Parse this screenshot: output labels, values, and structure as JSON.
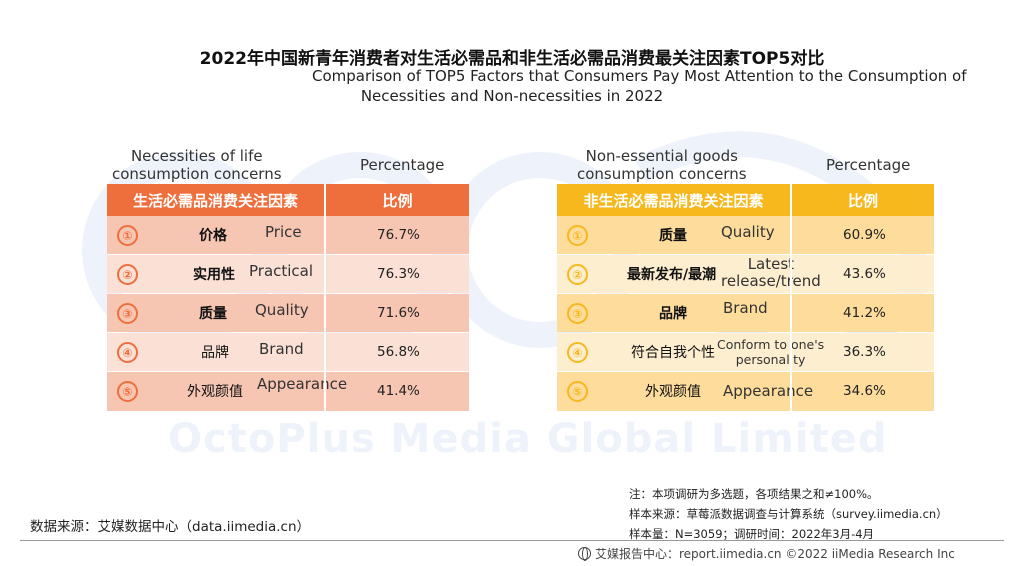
{
  "title_cn": "2022年中国新青年消费者对生活必需品和非生活必需品消费最关注因素TOP5对比",
  "title_en_line1": "Comparison of TOP5 Factors that Consumers Pay Most Attention to the Consumption of",
  "title_en_line2": "Necessities and Non-necessities in 2022",
  "watermark": "OctoPlus Media Global Limited",
  "chart_data": [
    {
      "type": "table",
      "column_label_en_line1": "Necessities of life",
      "column_label_en_line2": "consumption concerns",
      "percentage_label_en": "Percentage",
      "header_factor": "生活必需品消费关注因素",
      "header_percent": "比例",
      "rows": [
        {
          "rank": "①",
          "factor_cn": "价格",
          "factor_en": "Price",
          "value": "76.7%"
        },
        {
          "rank": "②",
          "factor_cn": "实用性",
          "factor_en": "Practical",
          "value": "76.3%"
        },
        {
          "rank": "③",
          "factor_cn": "质量",
          "factor_en": "Quality",
          "value": "71.6%"
        },
        {
          "rank": "④",
          "factor_cn": "品牌",
          "factor_en": "Brand",
          "value": "56.8%"
        },
        {
          "rank": "⑤",
          "factor_cn": "外观颜值",
          "factor_en": "Appearance",
          "value": "41.4%"
        }
      ]
    },
    {
      "type": "table",
      "column_label_en_line1": "Non-essential goods",
      "column_label_en_line2": "consumption concerns",
      "percentage_label_en": "Percentage",
      "header_factor": "非生活必需品消费关注因素",
      "header_percent": "比例",
      "rows": [
        {
          "rank": "①",
          "factor_cn": "质量",
          "factor_en": "Quality",
          "value": "60.9%"
        },
        {
          "rank": "②",
          "factor_cn": "最新发布/最潮",
          "factor_en_line1": "Latest",
          "factor_en_line2": "release/trend",
          "value": "43.6%"
        },
        {
          "rank": "③",
          "factor_cn": "品牌",
          "factor_en": "Brand",
          "value": "41.2%"
        },
        {
          "rank": "④",
          "factor_cn": "符合自我个性",
          "factor_en_line1": "Conform to one's",
          "factor_en_line2": "personality",
          "value": "36.3%"
        },
        {
          "rank": "⑤",
          "factor_cn": "外观颜值",
          "factor_en": "Appearance",
          "value": "34.6%"
        }
      ]
    }
  ],
  "notes": {
    "note": "注：本项调研为多选题，各项结果之和≠100%。",
    "source_system": "样本来源：草莓派数据调查与计算系统（survey.iimedia.cn）",
    "sample": "样本量：N=3059；调研时间：2022年3月-4月"
  },
  "data_source": "数据来源：艾媒数据中心（data.iimedia.cn）",
  "footer": "艾媒报告中心：report.iimedia.cn  ©2022  iiMedia Research Inc",
  "colors": {
    "table1_header": "#ee6f3c",
    "table2_header": "#f6b81c"
  }
}
